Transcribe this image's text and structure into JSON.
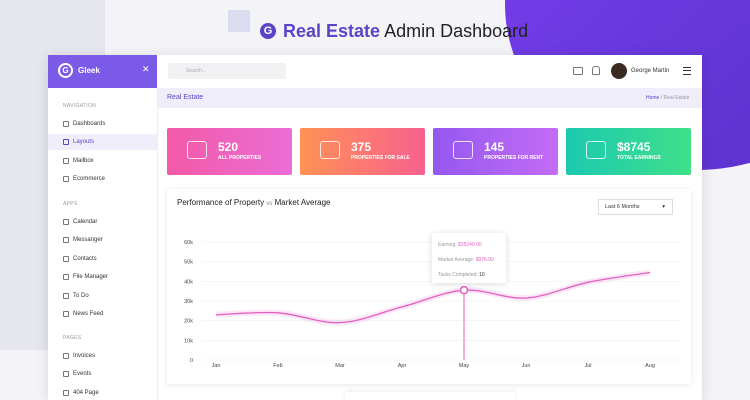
{
  "header": {
    "title_strong": "Real Estate",
    "title_rest": "Admin Dashboard"
  },
  "sidebar": {
    "brand": "Gleek",
    "sections": [
      {
        "title": "NAVIGATION",
        "items": [
          "Dashboards",
          "Layouts",
          "Mailbox",
          "Ecommerce"
        ]
      },
      {
        "title": "APPS",
        "items": [
          "Calendar",
          "Messanger",
          "Contacts",
          "File Manager",
          "To Do",
          "News Feed"
        ]
      },
      {
        "title": "PAGES",
        "items": [
          "Invoices",
          "Events",
          "404 Page"
        ]
      }
    ]
  },
  "topbar": {
    "search": "Search...",
    "user": "George Martin"
  },
  "breadcrumb": {
    "page": "Real Estate",
    "trail": [
      "Home",
      "Real Estate"
    ]
  },
  "cards": [
    {
      "value": "520",
      "label": "ALL PROPERTIES"
    },
    {
      "value": "375",
      "label": "PROPERTIES FOR SALE"
    },
    {
      "value": "145",
      "label": "PROPERTIES FOR RENT"
    },
    {
      "value": "$8745",
      "label": "TOTAL EARNINGS"
    }
  ],
  "panel": {
    "title": "Performance of Property",
    "vs": "vs",
    "title_right": "Market Average",
    "dropdown": "Last 6 Months",
    "tooltip": [
      [
        "Earning:",
        "$35240.00"
      ],
      [
        "Market Average:",
        "$976.00"
      ],
      [
        "Tasks Completed:",
        "10"
      ]
    ]
  },
  "chart_data": {
    "type": "line",
    "categories": [
      "Jan",
      "Feb",
      "Mar",
      "Apr",
      "May",
      "Jun",
      "Jul",
      "Aug"
    ],
    "series": [
      {
        "name": "Earning",
        "color": "#e45fc0",
        "values": [
          23000,
          24000,
          19000,
          27000,
          35500,
          31500,
          39500,
          44500
        ]
      }
    ],
    "ylim": [
      0,
      60000
    ],
    "yticks": [
      0,
      {
        "value": 10000,
        "label": "10k"
      },
      {
        "value": 20000,
        "label": "20k"
      },
      {
        "value": 30000,
        "label": "30k"
      },
      {
        "value": 40000,
        "label": "40k"
      },
      {
        "value": 50000,
        "label": "50k"
      },
      {
        "value": 60000,
        "label": "60k"
      }
    ],
    "grid": true
  }
}
